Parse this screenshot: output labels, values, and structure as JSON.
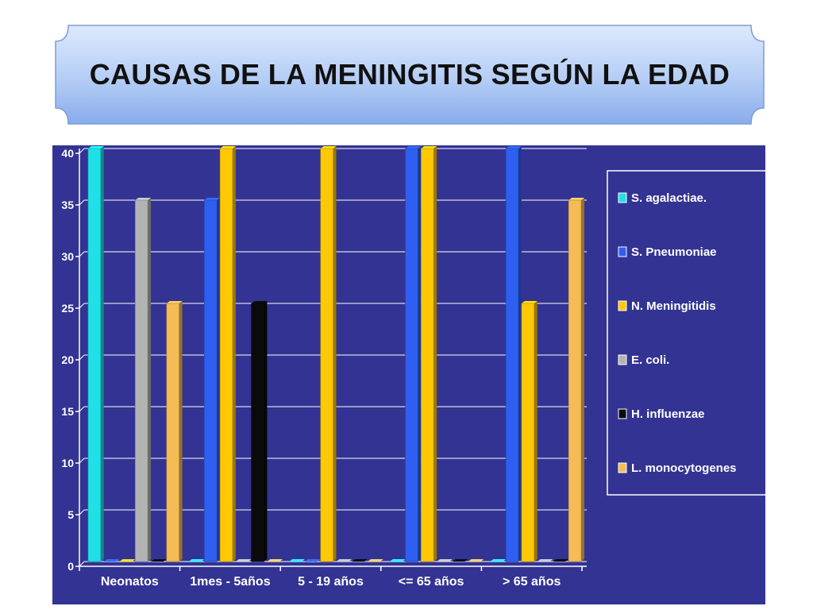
{
  "title": "CAUSAS DE LA MENINGITIS SEGÚN LA EDAD",
  "colors": {
    "background": "#333394",
    "gridline": "#ffffff",
    "axis_text": "#ffffff"
  },
  "chart_data": {
    "type": "bar",
    "title": "",
    "xlabel": "",
    "ylabel": "",
    "ylim": [
      0,
      40
    ],
    "yticks": [
      "0",
      "5",
      "10",
      "15",
      "20",
      "25",
      "30",
      "35",
      "40"
    ],
    "grid": true,
    "legend_position": "right",
    "categories": [
      "Neonatos",
      "1mes - 5años",
      "5 - 19 años",
      "<= 65 años",
      "> 65 años"
    ],
    "series": [
      {
        "name": "S. agalactiae.",
        "color": "#1fe0e6",
        "values": [
          40,
          0,
          0,
          0,
          0
        ]
      },
      {
        "name": "S. Pneumoniae",
        "color": "#2f5ff0",
        "values": [
          0,
          35,
          0,
          40,
          40
        ]
      },
      {
        "name": "N. Meningitidis",
        "color": "#ffc805",
        "values": [
          0,
          40,
          40,
          40,
          25
        ]
      },
      {
        "name": "E. coli.",
        "color": "#b3b3b3",
        "values": [
          35,
          0,
          0,
          0,
          0
        ]
      },
      {
        "name": "H. influenzae",
        "color": "#0a0a0a",
        "values": [
          0,
          25,
          0,
          0,
          0
        ]
      },
      {
        "name": "L. monocytogenes",
        "color": "#f5bb55",
        "values": [
          25,
          0,
          0,
          0,
          35
        ]
      }
    ]
  }
}
